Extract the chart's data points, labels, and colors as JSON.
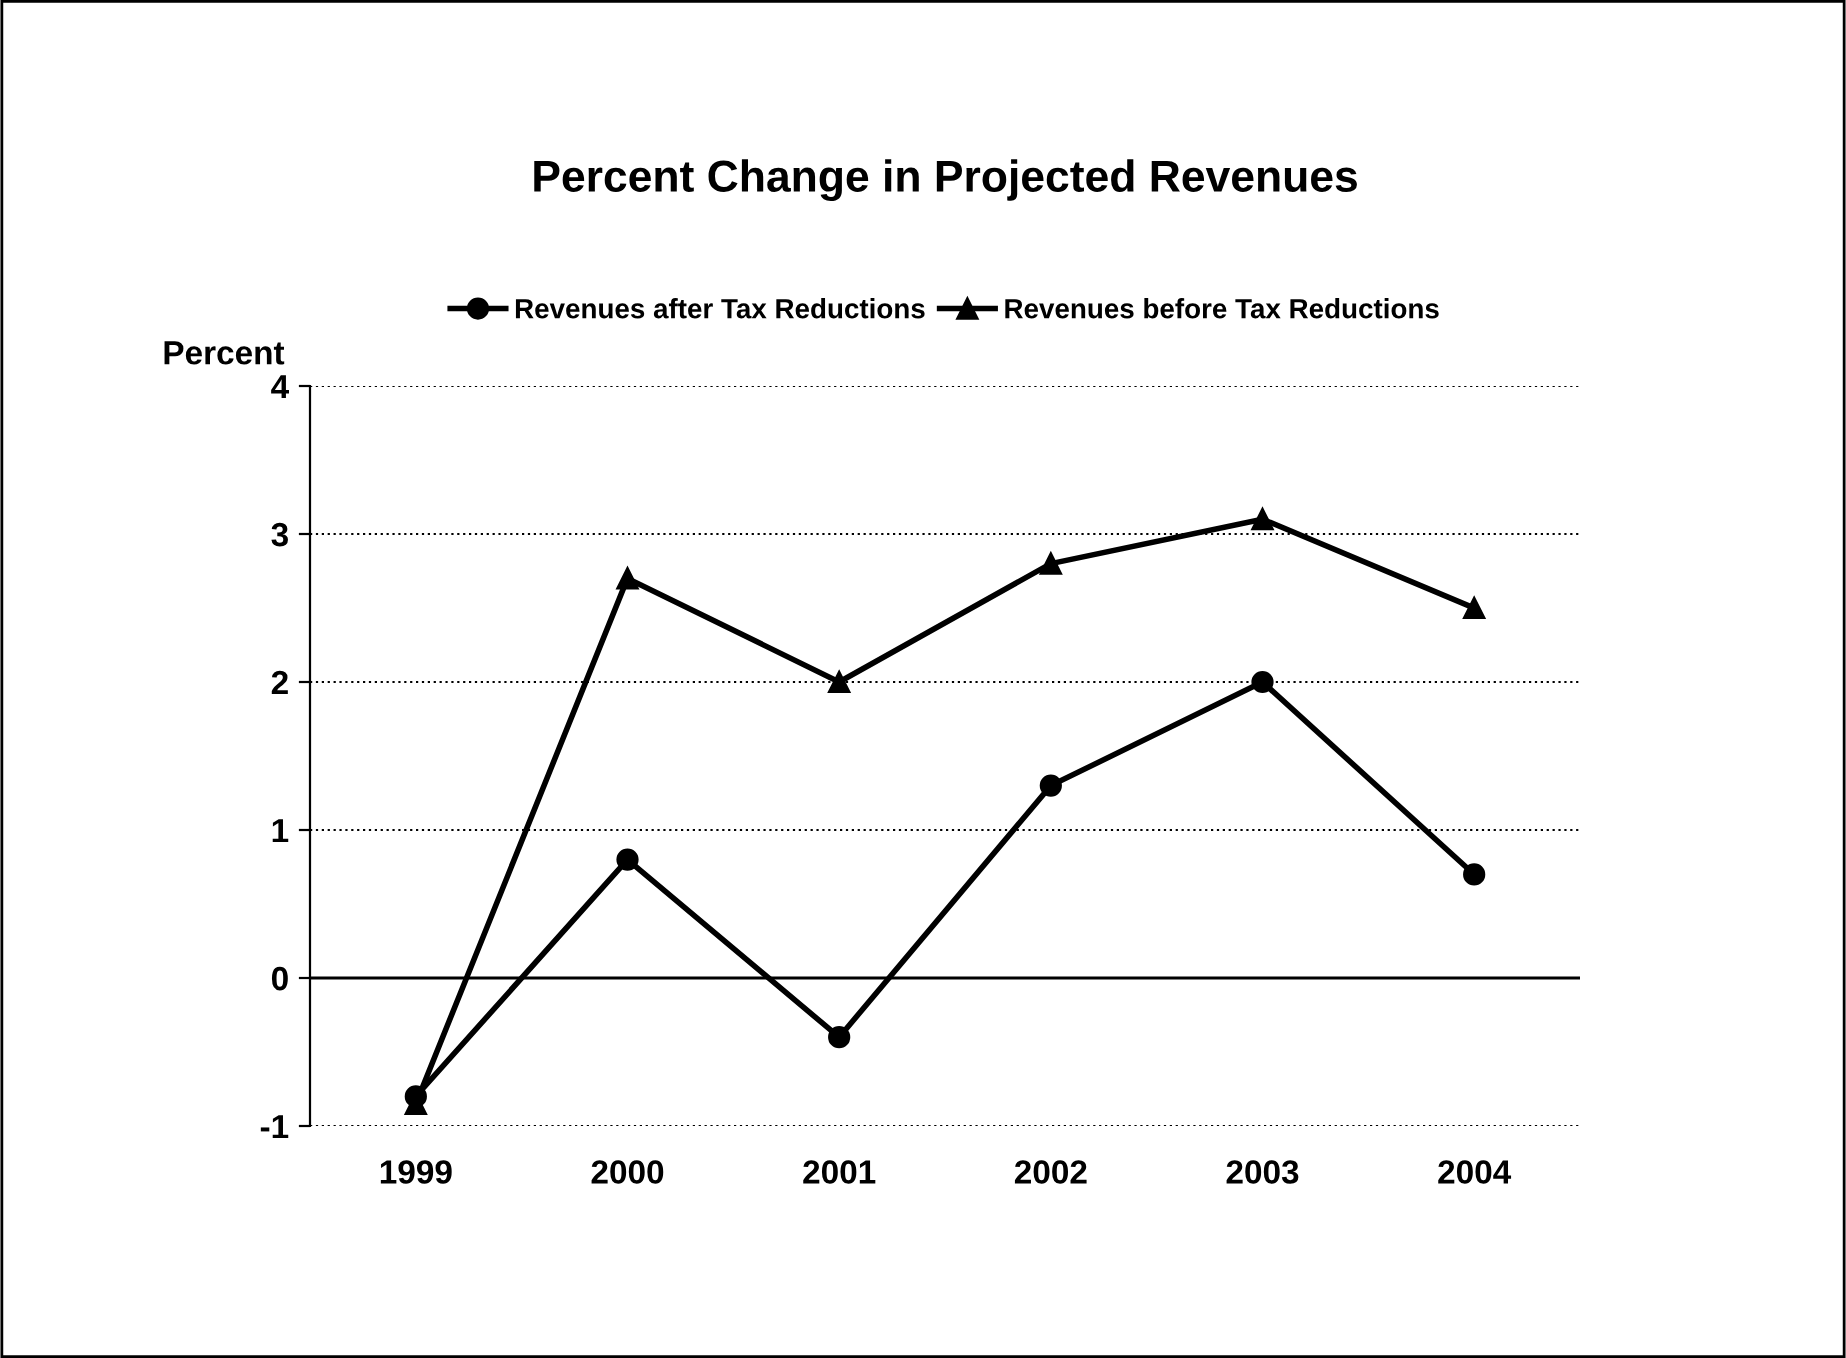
{
  "chart_data": {
    "type": "line",
    "title": "Percent Change in Projected Revenues",
    "ylabel": "Percent",
    "categories": [
      "1999",
      "2000",
      "2001",
      "2002",
      "2003",
      "2004"
    ],
    "series": [
      {
        "name": "Revenues after Tax Reductions",
        "color": "#000000",
        "marker": "circle",
        "values": [
          -0.8,
          0.8,
          -0.4,
          1.3,
          2.0,
          0.7
        ]
      },
      {
        "name": "Revenues before Tax Reductions",
        "color": "#000000",
        "marker": "triangle",
        "values": [
          -0.85,
          2.7,
          2.0,
          2.8,
          3.1,
          2.5
        ]
      }
    ],
    "ylim": [
      -1,
      4
    ],
    "yticks": [
      -1,
      0,
      1,
      2,
      3,
      4
    ],
    "grid": "y",
    "legend": "top",
    "line_style": "solid",
    "ref_lines": [
      {
        "axis": "y",
        "value": 0,
        "color": "#000000",
        "line_style": "solid"
      }
    ]
  }
}
